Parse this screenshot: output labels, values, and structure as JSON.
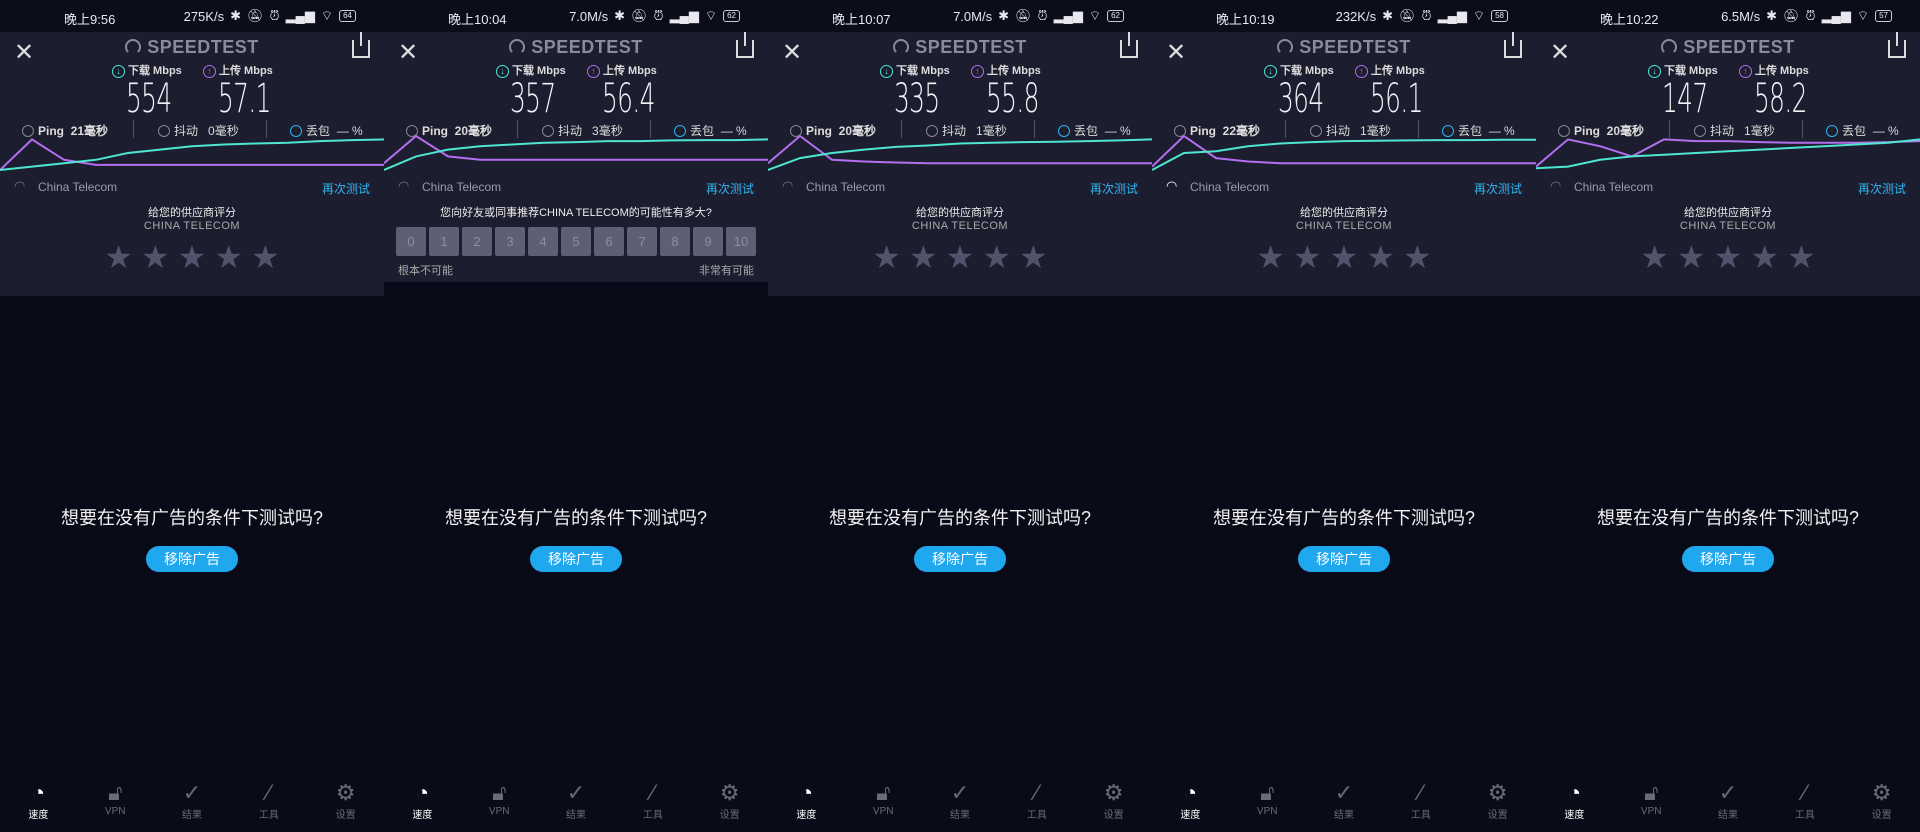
{
  "colors": {
    "download": "#4ee6d0",
    "upload": "#b46ef0",
    "accent": "#1fa8ee"
  },
  "common": {
    "brand": "SPEEDTEST",
    "download_label": "下载 Mbps",
    "upload_label": "上传 Mbps",
    "ping_label": "Ping",
    "jitter_label": "抖动",
    "loss_label": "丢包",
    "loss_value": "— %",
    "isp": "China Telecom",
    "retest": "再次测试",
    "rate_prompt": "给您的供应商评分",
    "rate_isp": "CHINA TELECOM",
    "nps_question": "您向好友或同事推荐CHINA TELECOM的可能性有多大?",
    "nps_low": "根本不可能",
    "nps_high": "非常有可能",
    "nps_scale": [
      "0",
      "1",
      "2",
      "3",
      "4",
      "5",
      "6",
      "7",
      "8",
      "9",
      "10"
    ],
    "ad_text": "想要在没有广告的条件下测试吗?",
    "ad_button": "移除广告",
    "nav": [
      {
        "label": "速度",
        "icon": "speed-gauge-icon"
      },
      {
        "label": "VPN",
        "icon": "unlock-icon"
      },
      {
        "label": "结果",
        "icon": "check-circle-icon"
      },
      {
        "label": "工具",
        "icon": "magic-wand-icon"
      },
      {
        "label": "设置",
        "icon": "gear-icon"
      }
    ]
  },
  "screens": [
    {
      "time": "晚上9:56",
      "net_speed": "275K/s",
      "battery": "64",
      "download": "554",
      "upload": "57.1",
      "ping": "21毫秒",
      "jitter": "0毫秒",
      "wifi_active": false,
      "mode": "stars",
      "dl_curve": [
        0,
        0.1,
        0.2,
        0.3,
        0.5,
        0.6,
        0.7,
        0.75,
        0.78,
        0.8,
        0.85,
        0.88,
        0.9
      ],
      "ul_curve": [
        0,
        0.9,
        0.3,
        0.15,
        0.15,
        0.15,
        0.15,
        0.15,
        0.15,
        0.15,
        0.15,
        0.15,
        0.15
      ]
    },
    {
      "time": "晚上10:04",
      "net_speed": "7.0M/s",
      "battery": "62",
      "download": "357",
      "upload": "56.4",
      "ping": "20毫秒",
      "jitter": "3毫秒",
      "wifi_active": false,
      "mode": "nps",
      "dl_curve": [
        0,
        0.4,
        0.6,
        0.7,
        0.75,
        0.8,
        0.82,
        0.85,
        0.85,
        0.87,
        0.88,
        0.88,
        0.9
      ],
      "ul_curve": [
        0.2,
        1,
        0.4,
        0.3,
        0.3,
        0.3,
        0.3,
        0.3,
        0.3,
        0.3,
        0.3,
        0.3,
        0.3
      ]
    },
    {
      "time": "晚上10:07",
      "net_speed": "7.0M/s",
      "battery": "62",
      "download": "335",
      "upload": "55.8",
      "ping": "20毫秒",
      "jitter": "1毫秒",
      "wifi_active": false,
      "mode": "stars",
      "dl_curve": [
        0,
        0.35,
        0.5,
        0.6,
        0.68,
        0.72,
        0.78,
        0.8,
        0.82,
        0.83,
        0.85,
        0.87,
        0.9
      ],
      "ul_curve": [
        0.2,
        1,
        0.3,
        0.25,
        0.22,
        0.2,
        0.2,
        0.2,
        0.2,
        0.2,
        0.2,
        0.2,
        0.2
      ]
    },
    {
      "time": "晚上10:19",
      "net_speed": "232K/s",
      "battery": "58",
      "download": "364",
      "upload": "56.1",
      "ping": "22毫秒",
      "jitter": "1毫秒",
      "wifi_active": true,
      "mode": "stars",
      "dl_curve": [
        0,
        0.5,
        0.55,
        0.7,
        0.78,
        0.82,
        0.85,
        0.86,
        0.87,
        0.88,
        0.88,
        0.89,
        0.89
      ],
      "ul_curve": [
        0.1,
        1,
        0.35,
        0.25,
        0.2,
        0.2,
        0.2,
        0.2,
        0.2,
        0.2,
        0.2,
        0.2,
        0.2
      ]
    },
    {
      "time": "晚上10:22",
      "net_speed": "6.5M/s",
      "battery": "57",
      "download": "147",
      "upload": "58.2",
      "ping": "20毫秒",
      "jitter": "1毫秒",
      "wifi_active": false,
      "mode": "stars",
      "dl_curve": [
        0.05,
        0.1,
        0.3,
        0.4,
        0.45,
        0.5,
        0.55,
        0.6,
        0.65,
        0.7,
        0.75,
        0.8,
        0.9
      ],
      "ul_curve": [
        0.1,
        0.9,
        0.7,
        0.4,
        0.9,
        0.85,
        0.85,
        0.82,
        0.8,
        0.8,
        0.8,
        0.82,
        0.85
      ]
    }
  ]
}
